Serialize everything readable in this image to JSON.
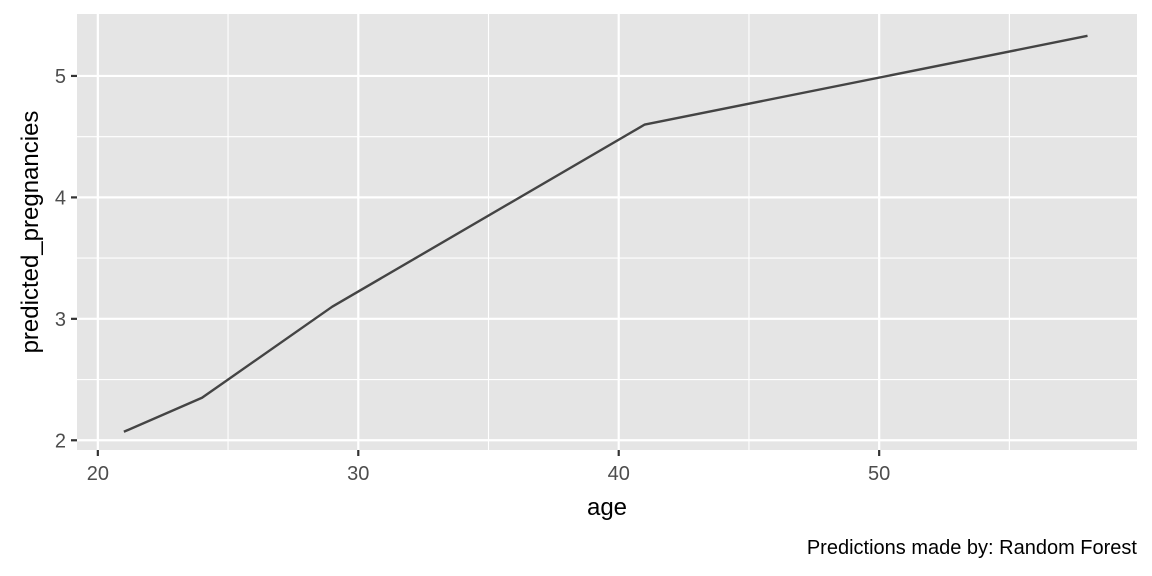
{
  "chart_data": {
    "type": "line",
    "xlabel": "age",
    "ylabel": "predicted_pregnancies",
    "caption": "Predictions made by: Random Forest",
    "xlim": [
      19.2,
      59.9
    ],
    "ylim": [
      1.92,
      5.51
    ],
    "x_ticks": [
      20,
      30,
      40,
      50
    ],
    "x_tick_labels": [
      "20",
      "30",
      "40",
      "50"
    ],
    "x_minor_ticks": [
      25,
      35,
      45,
      55
    ],
    "y_ticks": [
      2,
      3,
      4,
      5
    ],
    "y_tick_labels": [
      "2",
      "3",
      "4",
      "5"
    ],
    "y_minor_ticks": [
      2.5,
      3.5,
      4.5
    ],
    "grid": true,
    "series": [
      {
        "color": "#444444",
        "x": [
          21,
          24,
          29,
          41,
          58
        ],
        "y": [
          2.07,
          2.35,
          3.1,
          4.6,
          5.33
        ]
      }
    ]
  }
}
